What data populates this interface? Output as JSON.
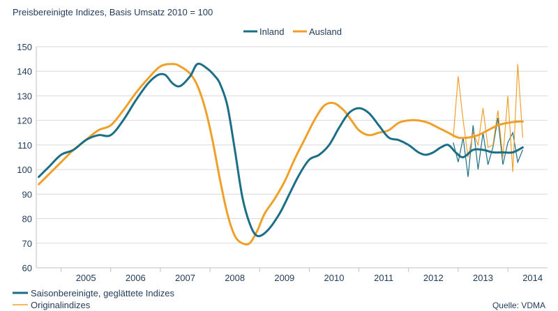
{
  "chart_data": {
    "type": "line",
    "title": "Preisbereinigte Indizes, Basis Umsatz 2010 = 100",
    "source": "Quelle: VDMA",
    "ylim": [
      60,
      150
    ],
    "yticks": [
      60,
      70,
      80,
      90,
      100,
      110,
      120,
      130,
      140,
      150
    ],
    "xlim": [
      2004.5,
      2014.8
    ],
    "year_labels": [
      "2005",
      "2006",
      "2007",
      "2008",
      "2009",
      "2010",
      "2011",
      "2012",
      "2013",
      "2014"
    ],
    "grid": "horizontal",
    "legend_top": [
      "Inland",
      "Ausland"
    ],
    "legend_bottom": [
      "Saisonbereinigte, geglättete Indizes",
      "Originalindizes"
    ],
    "colors": {
      "inland": "#1b6e86",
      "ausland": "#f0a02a",
      "text": "#1f3a5a",
      "grid": "#d9d9d9"
    },
    "series": [
      {
        "name": "Inland",
        "type": "smoothed",
        "color": "#1b6e86",
        "x": [
          2004.55,
          2004.75,
          2005.0,
          2005.25,
          2005.5,
          2005.75,
          2006.0,
          2006.25,
          2006.5,
          2006.75,
          2006.95,
          2007.1,
          2007.25,
          2007.4,
          2007.6,
          2007.75,
          2007.95,
          2008.1,
          2008.2,
          2008.35,
          2008.5,
          2008.65,
          2008.8,
          2008.95,
          2009.15,
          2009.4,
          2009.6,
          2009.8,
          2010.0,
          2010.2,
          2010.4,
          2010.6,
          2010.8,
          2011.0,
          2011.2,
          2011.4,
          2011.6,
          2011.8,
          2012.0,
          2012.2,
          2012.35,
          2012.5,
          2012.65,
          2012.8,
          2012.95,
          2013.1,
          2013.3,
          2013.5,
          2013.7,
          2013.9,
          2014.1,
          2014.3
        ],
        "y": [
          97,
          101,
          106,
          108,
          112,
          114,
          114,
          120,
          128,
          135,
          138.5,
          138.5,
          135,
          134,
          138,
          143,
          141,
          138,
          135,
          126,
          108,
          89,
          78,
          73,
          75,
          82,
          90,
          98,
          104,
          106,
          110,
          117,
          123,
          125,
          123,
          118,
          113,
          112,
          110,
          107,
          106,
          107,
          109,
          110,
          107,
          105,
          108,
          108,
          107,
          107,
          107,
          109
        ]
      },
      {
        "name": "Ausland",
        "type": "smoothed",
        "color": "#f0a02a",
        "x": [
          2004.55,
          2004.75,
          2005.0,
          2005.25,
          2005.5,
          2005.75,
          2006.0,
          2006.25,
          2006.5,
          2006.75,
          2007.0,
          2007.25,
          2007.4,
          2007.6,
          2007.75,
          2007.9,
          2008.05,
          2008.2,
          2008.35,
          2008.5,
          2008.65,
          2008.8,
          2008.95,
          2009.1,
          2009.3,
          2009.5,
          2009.7,
          2009.9,
          2010.1,
          2010.3,
          2010.5,
          2010.7,
          2010.85,
          2011.0,
          2011.2,
          2011.4,
          2011.6,
          2011.8,
          2012.0,
          2012.2,
          2012.4,
          2012.6,
          2012.8,
          2013.0,
          2013.2,
          2013.4,
          2013.6,
          2013.8,
          2014.0,
          2014.2,
          2014.3
        ],
        "y": [
          94,
          98,
          103,
          108,
          112,
          116,
          118,
          124,
          131,
          137,
          142,
          143,
          142,
          139,
          134,
          125,
          112,
          96,
          82,
          73,
          70,
          70,
          75,
          82,
          88,
          95,
          104,
          112,
          120,
          126,
          127,
          124,
          120,
          116,
          114,
          115,
          116,
          119,
          120,
          120,
          119,
          117,
          115,
          113,
          113,
          114,
          116,
          118,
          119,
          119.5,
          119.5
        ]
      },
      {
        "name": "Inland Original",
        "type": "original",
        "color": "#1b6e86",
        "x": [
          2012.9,
          2013.0,
          2013.1,
          2013.2,
          2013.3,
          2013.4,
          2013.5,
          2013.6,
          2013.7,
          2013.8,
          2013.9,
          2014.0,
          2014.1,
          2014.2,
          2014.3
        ],
        "y": [
          111,
          103,
          113,
          97,
          118,
          100,
          115,
          102,
          109,
          121,
          102,
          111,
          115,
          103,
          108
        ]
      },
      {
        "name": "Ausland Original",
        "type": "original",
        "color": "#f0a02a",
        "x": [
          2012.9,
          2013.0,
          2013.1,
          2013.2,
          2013.3,
          2013.4,
          2013.5,
          2013.6,
          2013.7,
          2013.8,
          2013.9,
          2014.0,
          2014.1,
          2014.2,
          2014.3
        ],
        "y": [
          113,
          138,
          120,
          105,
          115,
          110,
          125,
          109,
          110,
          124,
          105,
          130,
          99,
          143,
          113
        ]
      }
    ]
  }
}
